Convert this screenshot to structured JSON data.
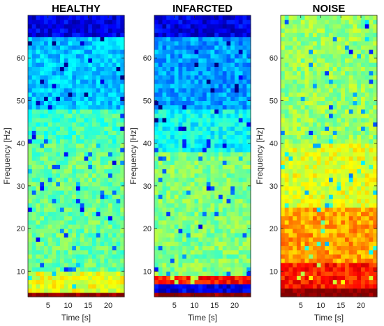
{
  "chart_data": [
    {
      "type": "heatmap",
      "title": "HEALTHY",
      "xlabel": "Time [s]",
      "ylabel": "Frequency [Hz]",
      "xlim": [
        0,
        24
      ],
      "ylim": [
        4,
        70
      ],
      "xticks": [
        5,
        10,
        15,
        20
      ],
      "yticks": [
        10,
        20,
        30,
        40,
        50,
        60
      ],
      "colormap": "jet",
      "bins": {
        "time_count": 24,
        "freq_count": 66
      },
      "color_levels_by_frequency": [
        {
          "freq_range": [
            4,
            5
          ],
          "level": 1.0
        },
        {
          "freq_range": [
            5,
            10
          ],
          "level": 0.6
        },
        {
          "freq_range": [
            10,
            40
          ],
          "level": 0.48
        },
        {
          "freq_range": [
            40,
            48
          ],
          "level": 0.44
        },
        {
          "freq_range": [
            48,
            65
          ],
          "level": 0.32
        },
        {
          "freq_range": [
            65,
            70
          ],
          "level": 0.1
        }
      ]
    },
    {
      "type": "heatmap",
      "title": "INFARCTED",
      "xlabel": "Time [s]",
      "ylabel": "Frequency [Hz]",
      "xlim": [
        0,
        24
      ],
      "ylim": [
        4,
        70
      ],
      "xticks": [
        5,
        10,
        15,
        20
      ],
      "yticks": [
        10,
        20,
        30,
        40,
        50,
        60
      ],
      "colormap": "jet",
      "bins": {
        "time_count": 24,
        "freq_count": 66
      },
      "color_levels_by_frequency": [
        {
          "freq_range": [
            4,
            5
          ],
          "level": 1.0
        },
        {
          "freq_range": [
            7,
            9
          ],
          "level": 0.85
        },
        {
          "freq_range": [
            9,
            38
          ],
          "level": 0.5
        },
        {
          "freq_range": [
            38,
            48
          ],
          "level": 0.38
        },
        {
          "freq_range": [
            48,
            65
          ],
          "level": 0.28
        },
        {
          "freq_range": [
            65,
            70
          ],
          "level": 0.1
        }
      ]
    },
    {
      "type": "heatmap",
      "title": "NOISE",
      "xlabel": "Time [s]",
      "ylabel": "Frequency [Hz]",
      "xlim": [
        0,
        24
      ],
      "ylim": [
        4,
        70
      ],
      "xticks": [
        5,
        10,
        15,
        20
      ],
      "yticks": [
        10,
        20,
        30,
        40,
        50,
        60
      ],
      "colormap": "jet",
      "bins": {
        "time_count": 24,
        "freq_count": 66
      },
      "color_levels_by_frequency": [
        {
          "freq_range": [
            4,
            6
          ],
          "level": 1.0
        },
        {
          "freq_range": [
            6,
            12
          ],
          "level": 0.85
        },
        {
          "freq_range": [
            12,
            25
          ],
          "level": 0.72
        },
        {
          "freq_range": [
            25,
            40
          ],
          "level": 0.6
        },
        {
          "freq_range": [
            40,
            70
          ],
          "level": 0.52
        }
      ]
    }
  ]
}
